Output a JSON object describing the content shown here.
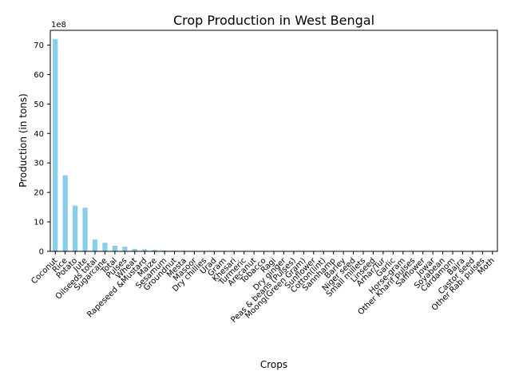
{
  "chart_data": {
    "type": "bar",
    "title": "Crop Production in West Bengal",
    "xlabel": "Crops",
    "ylabel": "Production (in tons)",
    "offset_text": "1e8",
    "bar_color": "#87CEEB",
    "ylim": [
      0,
      7.5
    ],
    "y_scale": 100000000,
    "yticks": [
      0,
      1,
      2,
      3,
      4,
      5,
      6,
      7
    ],
    "ytick_labels": [
      "0",
      "10",
      "20",
      "30",
      "40",
      "50",
      "60",
      "70"
    ],
    "categories": [
      "Coconut",
      "Rice",
      "Potato",
      "Jute",
      "Oilseeds total",
      "Sugarcane",
      "Total",
      "Pulses",
      "Wheat",
      "Rapeseed &Mustard",
      "Maize",
      "Sesamum",
      "Groundnut",
      "Mesta",
      "Masoor",
      "Dry chillies",
      "Urad",
      "Gram",
      "Khesari",
      "Turmeric",
      "Arecanut",
      "Tobacco",
      "Ragi",
      "Dry ginger",
      "Peas & beans (Pulses)",
      "Moong(Green Gram)",
      "Sunflower",
      "Cotton(lint)",
      "Sannhamp",
      "Barley",
      "Niger seed",
      "Small millets",
      "Linseed",
      "Arhar/Tur",
      "Garlic",
      "Horse-gram",
      "Other Kharif pulses",
      "Safflower",
      "Jowar",
      "Soyabean",
      "Cardamom",
      "Bajra",
      "Castor seed",
      "Other Rabi pulses",
      "Moth"
    ],
    "values": [
      7.2,
      2.58,
      1.55,
      1.48,
      0.4,
      0.29,
      0.19,
      0.16,
      0.08,
      0.07,
      0.05,
      0.03,
      0.02,
      0.02,
      0.015,
      0.012,
      0.01,
      0.009,
      0.008,
      0.007,
      0.006,
      0.005,
      0.004,
      0.004,
      0.003,
      0.003,
      0.002,
      0.002,
      0.002,
      0.0015,
      0.0012,
      0.001,
      0.001,
      0.0008,
      0.0007,
      0.0006,
      0.0005,
      0.0004,
      0.0003,
      0.0003,
      0.0002,
      0.0002,
      0.0001,
      0.0001,
      0.0001
    ],
    "grid": false,
    "legend": "none"
  }
}
